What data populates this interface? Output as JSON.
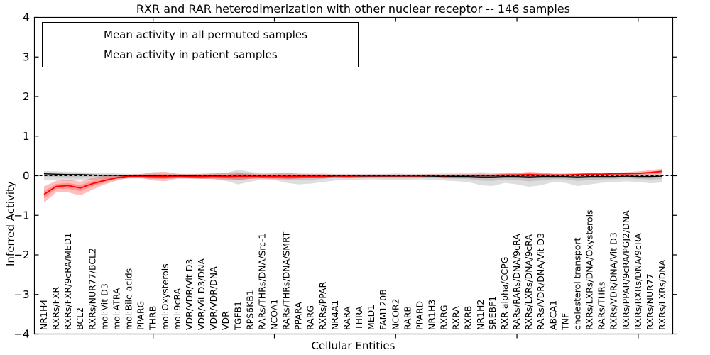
{
  "title": "RXR and RAR heterodimerization with other nuclear receptor -- 146 samples",
  "legend": {
    "entries": [
      {
        "label": "Mean activity in all permuted samples",
        "color": "#000000"
      },
      {
        "label": "Mean activity in patient samples",
        "color": "#ff0000"
      }
    ]
  },
  "chart_data": {
    "type": "line",
    "title": "RXR and RAR heterodimerization with other nuclear receptor -- 146 samples",
    "xlabel": "Cellular Entities",
    "ylabel": "Inferred Activity",
    "ylim": [
      -4,
      4
    ],
    "yticks": [
      -4,
      -3,
      -2,
      -1,
      0,
      1,
      2,
      3,
      4
    ],
    "x_major_tick_indices": [
      9,
      19,
      29,
      39,
      49
    ],
    "zero_reference_line": {
      "style": "dashed",
      "color": "#000000",
      "y": 0
    },
    "legend_position": "upper left",
    "grid": false,
    "categories": [
      "NR1H4",
      "RXRs/FXR",
      "RXRs/FXR/9cRA/MED1",
      "BCL2",
      "RXRs/NUR77/BCL2",
      "mol:Vit D3",
      "mol:ATRA",
      "mol:Bile acids",
      "PPARG",
      "THRB",
      "mol:Oxysterols",
      "mol:9cRA",
      "VDR/VDR/Vit D3",
      "VDR/Vit D3/DNA",
      "VDR/VDR/DNA",
      "VDR",
      "TGFB1",
      "RPS6KB1",
      "RARs/THRs/DNA/Src-1",
      "NCOA1",
      "RARs/THRs/DNA/SMRT",
      "PPARA",
      "RARG",
      "RXRs/PPAR",
      "NR4A1",
      "RARA",
      "THRA",
      "MED1",
      "FAM120B",
      "NCOR2",
      "RARB",
      "PPARD",
      "NR1H3",
      "RXRG",
      "RXRA",
      "RXRB",
      "NR1H2",
      "SREBF1",
      "RXR alpha/CCPG",
      "RARs/RARs/DNA/9cRA",
      "RXRs/LXRs/DNA/9cRA",
      "RARs/VDR/DNA/Vit D3",
      "ABCA1",
      "TNF",
      "cholesterol transport",
      "RXRs/LXRs/DNA/Oxysterols",
      "RARs/THRs",
      "RXRs/VDR/DNA/Vit D3",
      "RXRs/PPAR/9cRA/PGJ2/DNA",
      "RXRs/RXRs/DNA/9cRA",
      "RXRs/NUR77",
      "RXRs/LXRs/DNA"
    ],
    "series": [
      {
        "name": "Mean activity in all permuted samples",
        "color": "#000000",
        "line_width": 1.3,
        "band_color": "#000000",
        "band_opacity": 0.13,
        "values": [
          0.05,
          0.04,
          0.03,
          0.03,
          0.02,
          0.01,
          0.01,
          0.0,
          0.0,
          0.0,
          -0.01,
          0.0,
          0.0,
          -0.01,
          0.0,
          -0.01,
          -0.01,
          -0.01,
          -0.02,
          -0.01,
          -0.02,
          -0.02,
          -0.02,
          -0.02,
          -0.01,
          -0.01,
          -0.01,
          -0.01,
          -0.01,
          -0.01,
          -0.01,
          -0.01,
          -0.01,
          -0.02,
          -0.02,
          -0.02,
          -0.03,
          -0.03,
          -0.02,
          -0.02,
          -0.03,
          -0.02,
          -0.02,
          -0.02,
          -0.03,
          -0.02,
          -0.02,
          -0.02,
          -0.01,
          -0.02,
          -0.02,
          -0.01
        ],
        "band_upper": [
          0.12,
          0.11,
          0.1,
          0.09,
          0.08,
          0.07,
          0.06,
          0.05,
          0.05,
          0.06,
          0.05,
          0.05,
          0.05,
          0.05,
          0.06,
          0.07,
          0.15,
          0.1,
          0.06,
          0.06,
          0.08,
          0.06,
          0.06,
          0.06,
          0.05,
          0.05,
          0.05,
          0.05,
          0.05,
          0.06,
          0.05,
          0.05,
          0.05,
          0.06,
          0.06,
          0.07,
          0.09,
          0.08,
          0.06,
          0.07,
          0.08,
          0.07,
          0.06,
          0.06,
          0.08,
          0.07,
          0.06,
          0.06,
          0.05,
          0.06,
          0.08,
          0.06
        ],
        "band_lower": [
          -0.1,
          -0.12,
          -0.13,
          -0.12,
          -0.1,
          -0.09,
          -0.08,
          -0.07,
          -0.07,
          -0.08,
          -0.08,
          -0.07,
          -0.07,
          -0.08,
          -0.09,
          -0.13,
          -0.22,
          -0.15,
          -0.1,
          -0.11,
          -0.18,
          -0.22,
          -0.2,
          -0.16,
          -0.12,
          -0.11,
          -0.1,
          -0.09,
          -0.1,
          -0.11,
          -0.1,
          -0.09,
          -0.1,
          -0.12,
          -0.14,
          -0.16,
          -0.24,
          -0.26,
          -0.18,
          -0.22,
          -0.28,
          -0.24,
          -0.16,
          -0.18,
          -0.26,
          -0.22,
          -0.18,
          -0.16,
          -0.14,
          -0.16,
          -0.19,
          -0.17
        ]
      },
      {
        "name": "Mean activity in patient samples",
        "color": "#ff0000",
        "line_width": 1.8,
        "band_color": "#ff0000",
        "band_opacity": 0.25,
        "values": [
          -0.47,
          -0.27,
          -0.25,
          -0.31,
          -0.2,
          -0.12,
          -0.05,
          -0.01,
          -0.01,
          -0.02,
          -0.02,
          -0.01,
          -0.02,
          -0.02,
          -0.01,
          -0.02,
          -0.01,
          -0.01,
          -0.01,
          -0.02,
          -0.01,
          -0.01,
          -0.01,
          -0.01,
          0.0,
          -0.01,
          0.0,
          0.0,
          0.0,
          0.0,
          0.0,
          0.0,
          0.01,
          0.0,
          0.01,
          0.01,
          0.01,
          0.01,
          0.02,
          0.02,
          0.03,
          0.02,
          0.02,
          0.02,
          0.03,
          0.04,
          0.04,
          0.05,
          0.05,
          0.06,
          0.08,
          0.11
        ],
        "band_upper": [
          -0.27,
          -0.13,
          -0.1,
          -0.15,
          -0.05,
          0.0,
          0.02,
          0.03,
          0.04,
          0.09,
          0.1,
          0.05,
          0.04,
          0.05,
          0.06,
          0.08,
          0.09,
          0.06,
          0.05,
          0.06,
          0.07,
          0.05,
          0.04,
          0.04,
          0.03,
          0.03,
          0.03,
          0.03,
          0.03,
          0.03,
          0.03,
          0.03,
          0.04,
          0.03,
          0.04,
          0.04,
          0.05,
          0.04,
          0.06,
          0.07,
          0.1,
          0.08,
          0.05,
          0.05,
          0.06,
          0.07,
          0.07,
          0.08,
          0.09,
          0.11,
          0.14,
          0.18
        ],
        "band_lower": [
          -0.68,
          -0.42,
          -0.42,
          -0.5,
          -0.35,
          -0.22,
          -0.12,
          -0.06,
          -0.05,
          -0.12,
          -0.14,
          -0.07,
          -0.07,
          -0.08,
          -0.08,
          -0.11,
          -0.11,
          -0.08,
          -0.07,
          -0.09,
          -0.09,
          -0.07,
          -0.06,
          -0.06,
          -0.04,
          -0.05,
          -0.04,
          -0.03,
          -0.03,
          -0.03,
          -0.03,
          -0.03,
          -0.03,
          -0.03,
          -0.02,
          -0.02,
          -0.03,
          -0.02,
          -0.02,
          -0.03,
          -0.04,
          -0.03,
          -0.01,
          -0.01,
          0.0,
          0.01,
          0.01,
          0.02,
          0.02,
          0.02,
          0.03,
          0.04
        ]
      }
    ]
  }
}
